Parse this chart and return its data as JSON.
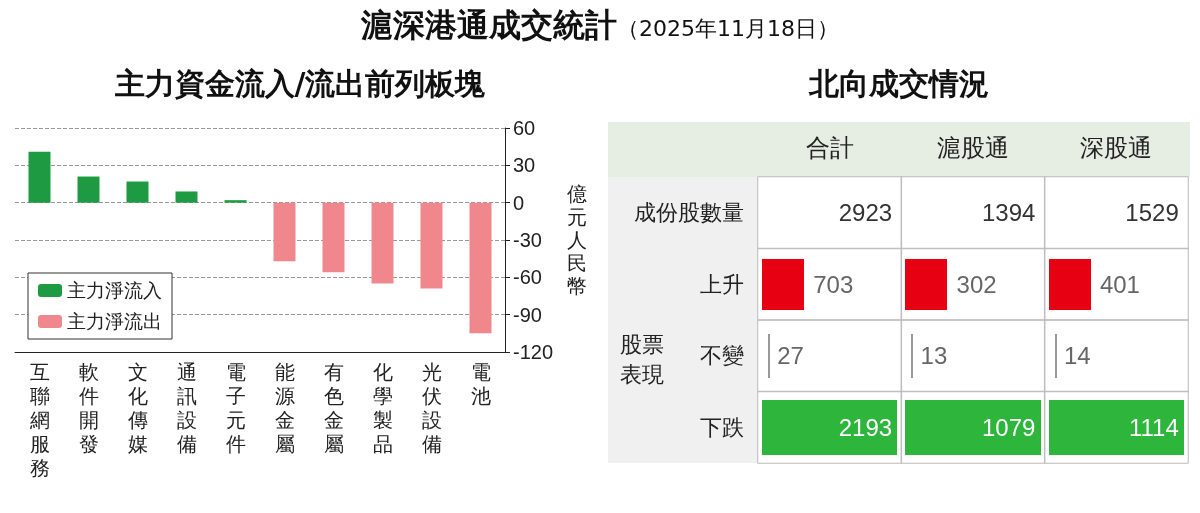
{
  "chart_data": [
    {
      "type": "other",
      "title": "滬深港通成交統計",
      "subtitle": "（2025年11月18日）"
    },
    {
      "type": "bar",
      "title": "主力資金流入/流出前列板塊",
      "ylabel": "億元人民幣",
      "categories": [
        "互聯網服務",
        "軟件開發",
        "文化傳媒",
        "通訊設備",
        "電子元件",
        "能源金屬",
        "有色金屬",
        "化學製品",
        "光伏設備",
        "電池"
      ],
      "series": [
        {
          "name": "主力淨流入",
          "color": "#1e9a43",
          "values": [
            41,
            21,
            17,
            9,
            2,
            null,
            null,
            null,
            null,
            null
          ]
        },
        {
          "name": "主力淨流出",
          "color": "#f0878d",
          "values": [
            null,
            null,
            null,
            null,
            null,
            -47,
            -56,
            -65,
            -69,
            -105
          ]
        }
      ],
      "stacked": true,
      "ylim": [
        -120,
        60
      ],
      "yticks": [
        -120,
        -90,
        -60,
        -30,
        0,
        30,
        60
      ],
      "grid": "y",
      "legend": "bottom left"
    },
    {
      "type": "heatmap",
      "title": "北向成交情況",
      "categories": [
        "合計",
        "滬股通",
        "深股通"
      ],
      "y_categories": [
        "成份股數量",
        "上升",
        "不變",
        "下跌"
      ],
      "cells": [
        [
          2923,
          1394,
          1529
        ],
        [
          703,
          302,
          401
        ],
        [
          27,
          13,
          14
        ],
        [
          2193,
          1079,
          1114
        ]
      ],
      "data_labels": true,
      "annotations": [
        "股票表現"
      ]
    }
  ]
}
